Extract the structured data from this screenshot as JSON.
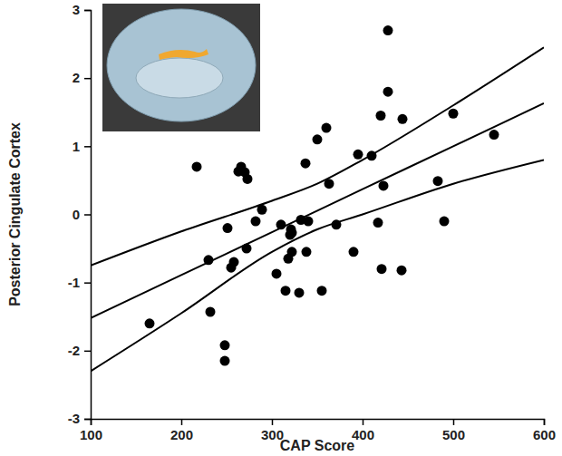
{
  "chart_data": {
    "type": "scatter",
    "x_label": "CAP Score",
    "y_label": "Posterior Cingulate Cortex",
    "xlim": [
      100,
      600
    ],
    "xticks": [
      100,
      200,
      300,
      400,
      500,
      600
    ],
    "ylim": [
      -3,
      3
    ],
    "yticks": [
      -3,
      -2,
      -1,
      0,
      1,
      2,
      3
    ],
    "grid": false,
    "series": [
      {
        "type": "scatter",
        "marker": "circle",
        "color": "#000000",
        "x": [
          165,
          217,
          230,
          232,
          248,
          248,
          251,
          255,
          258,
          263,
          266,
          270,
          272,
          273,
          282,
          289,
          305,
          310,
          315,
          318,
          320,
          321,
          322,
          322,
          330,
          332,
          337,
          338,
          340,
          350,
          355,
          360,
          363,
          371,
          390,
          395,
          410,
          417,
          420,
          421,
          423,
          428,
          428,
          443,
          444,
          483,
          490,
          500,
          545
        ],
        "values": [
          -1.6,
          0.7,
          -0.67,
          -1.43,
          -1.92,
          -2.15,
          -0.2,
          -0.78,
          -0.7,
          0.63,
          0.7,
          0.62,
          -0.5,
          0.52,
          -0.1,
          0.07,
          -0.87,
          -0.15,
          -1.12,
          -0.65,
          -0.3,
          -0.22,
          -0.55,
          -0.27,
          -1.15,
          -0.08,
          0.75,
          -0.55,
          -0.1,
          1.1,
          -1.12,
          1.27,
          0.45,
          -0.15,
          -0.55,
          0.88,
          0.86,
          -0.12,
          1.45,
          -0.8,
          0.42,
          2.7,
          1.8,
          -0.82,
          1.4,
          0.49,
          -0.1,
          1.48,
          1.17
        ]
      },
      {
        "type": "line",
        "line_style": "solid",
        "color": "#000000",
        "x": [
          100,
          200,
          300,
          400,
          500,
          600
        ],
        "values": [
          -1.52,
          -0.89,
          -0.26,
          0.37,
          1.0,
          1.63
        ]
      },
      {
        "type": "line",
        "line_style": "solid",
        "color": "#000000",
        "x": [
          100,
          200,
          300,
          350,
          400,
          500,
          600
        ],
        "values": [
          -0.75,
          -0.25,
          0.2,
          0.45,
          0.8,
          1.6,
          2.45
        ]
      },
      {
        "type": "line",
        "line_style": "solid",
        "color": "#000000",
        "x": [
          100,
          200,
          300,
          350,
          400,
          500,
          600
        ],
        "values": [
          -2.3,
          -1.45,
          -0.55,
          -0.22,
          0.0,
          0.45,
          0.8
        ]
      }
    ]
  }
}
